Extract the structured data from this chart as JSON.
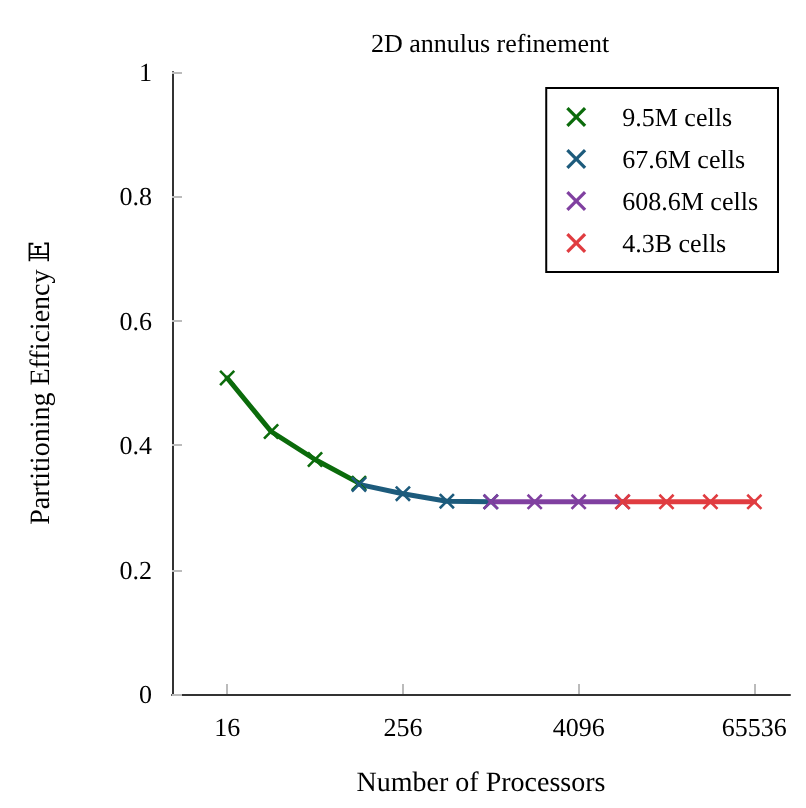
{
  "chart_data": {
    "type": "line",
    "title": "2D annulus refinement",
    "xlabel": "Number of Processors",
    "ylabel": "Partitioning Efficiency 𝔼",
    "log": "x",
    "xlim": [
      6.7,
      115000
    ],
    "xticks": [
      16,
      256,
      4096,
      65536
    ],
    "ylim": [
      0,
      1
    ],
    "yticks": [
      0,
      0.2,
      0.4,
      0.6,
      0.8,
      1
    ],
    "grid": false,
    "legend": "top right",
    "marker": "cross",
    "line_style": "solid",
    "series": [
      {
        "name": "9.5M cells",
        "color": "#0b6b0b",
        "x": [
          16,
          32,
          64,
          128
        ],
        "values": [
          0.508,
          0.422,
          0.377,
          0.339
        ]
      },
      {
        "name": "67.6M cells",
        "color": "#1d5b7c",
        "x": [
          128,
          256,
          512,
          1024
        ],
        "values": [
          0.337,
          0.322,
          0.31,
          0.309
        ]
      },
      {
        "name": "608.6M cells",
        "color": "#8040a0",
        "x": [
          1024,
          2048,
          4096,
          8192
        ],
        "values": [
          0.309,
          0.309,
          0.309,
          0.309
        ]
      },
      {
        "name": "4.3B cells",
        "color": "#e03c40",
        "x": [
          8192,
          16384,
          32768,
          65536
        ],
        "values": [
          0.309,
          0.309,
          0.309,
          0.309
        ]
      }
    ]
  }
}
